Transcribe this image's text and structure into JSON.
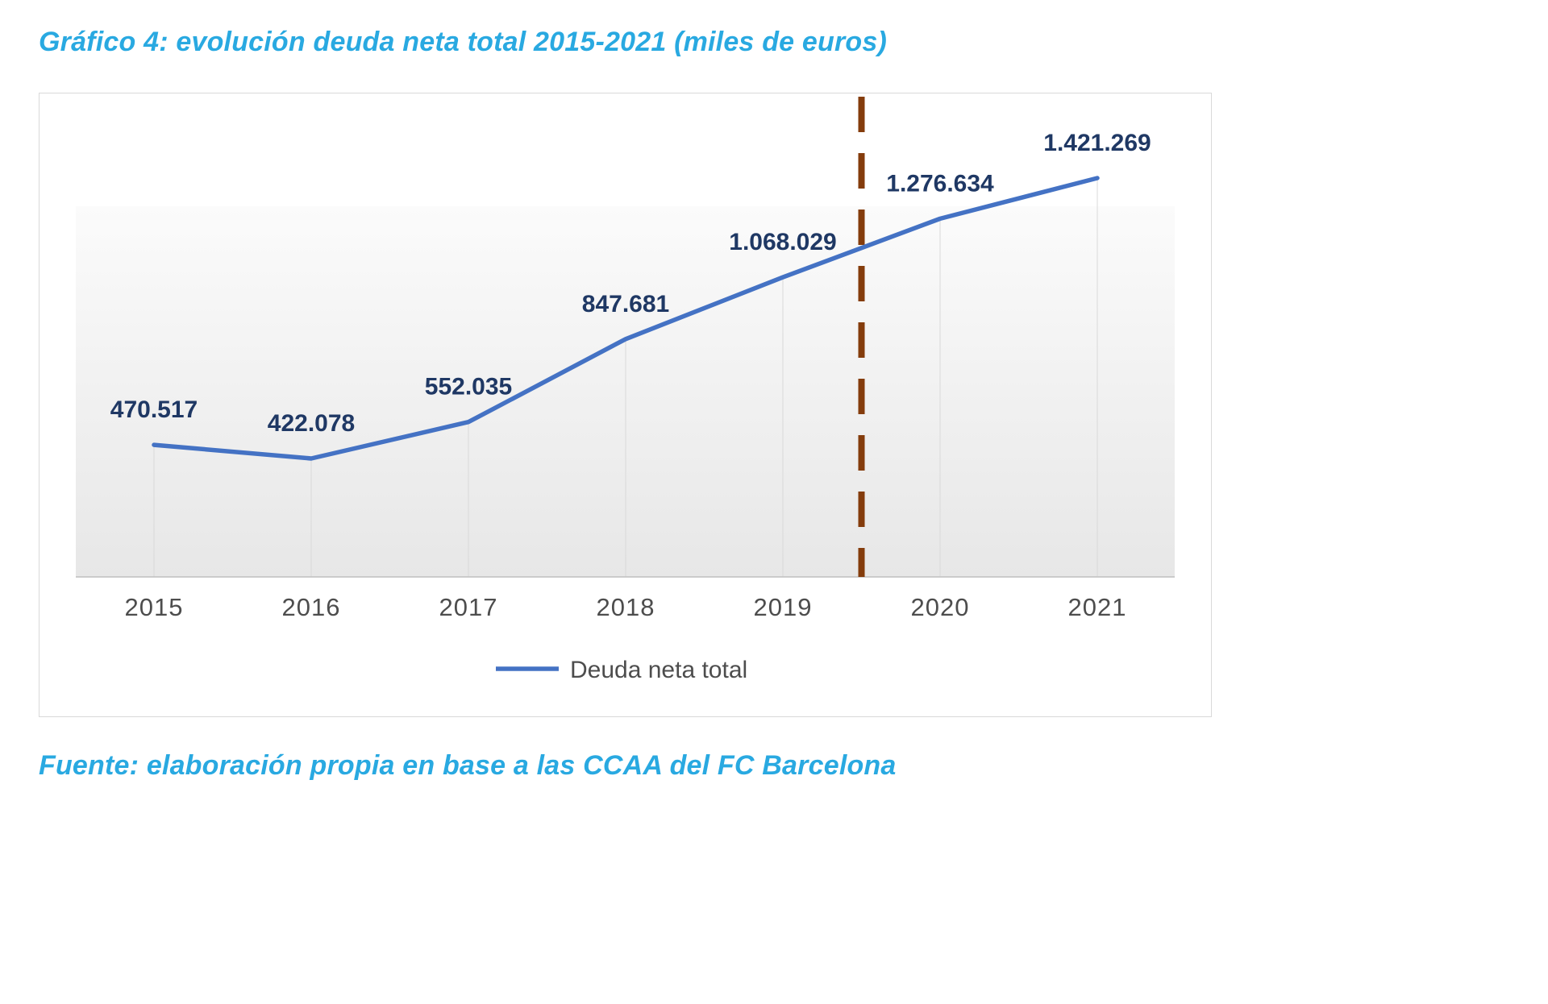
{
  "page": {
    "title": "Gráfico 4: evolución deuda neta total 2015-2021 (miles de euros)",
    "source": "Fuente: elaboración propia en base a las CCAA del FC Barcelona"
  },
  "chart_data": {
    "type": "line",
    "title": "Gráfico 4: evolución deuda neta total 2015-2021 (miles de euros)",
    "categories": [
      "2015",
      "2016",
      "2017",
      "2018",
      "2019",
      "2020",
      "2021"
    ],
    "series": [
      {
        "name": "Deuda neta total",
        "values": [
          470517,
          422078,
          552035,
          847681,
          1068029,
          1276634,
          1421269
        ],
        "labels": [
          "470.517",
          "422.078",
          "552.035",
          "847.681",
          "1.068.029",
          "1.276.634",
          "1.421.269"
        ],
        "color": "#4472C4"
      }
    ],
    "xlabel": "",
    "ylabel": "",
    "ylim": [
      0,
      1500000
    ],
    "grid": false,
    "legend": {
      "position": "bottom",
      "entries": [
        "Deuda neta total"
      ]
    },
    "annotations": [
      {
        "type": "vline",
        "x": 2019.5,
        "style": "long-dash",
        "color": "#843C0C",
        "label": ""
      }
    ],
    "colors": {
      "title": "#29A9E1",
      "data_label": "#1F3864",
      "axis_text": "#4D4D4D",
      "legend_text": "#4D4D4D",
      "line": "#4472C4",
      "annotation": "#843C0C",
      "drop_line": "#D9D9D9",
      "axis_line": "#BFBFBF",
      "border": "#D9D9D9"
    }
  }
}
